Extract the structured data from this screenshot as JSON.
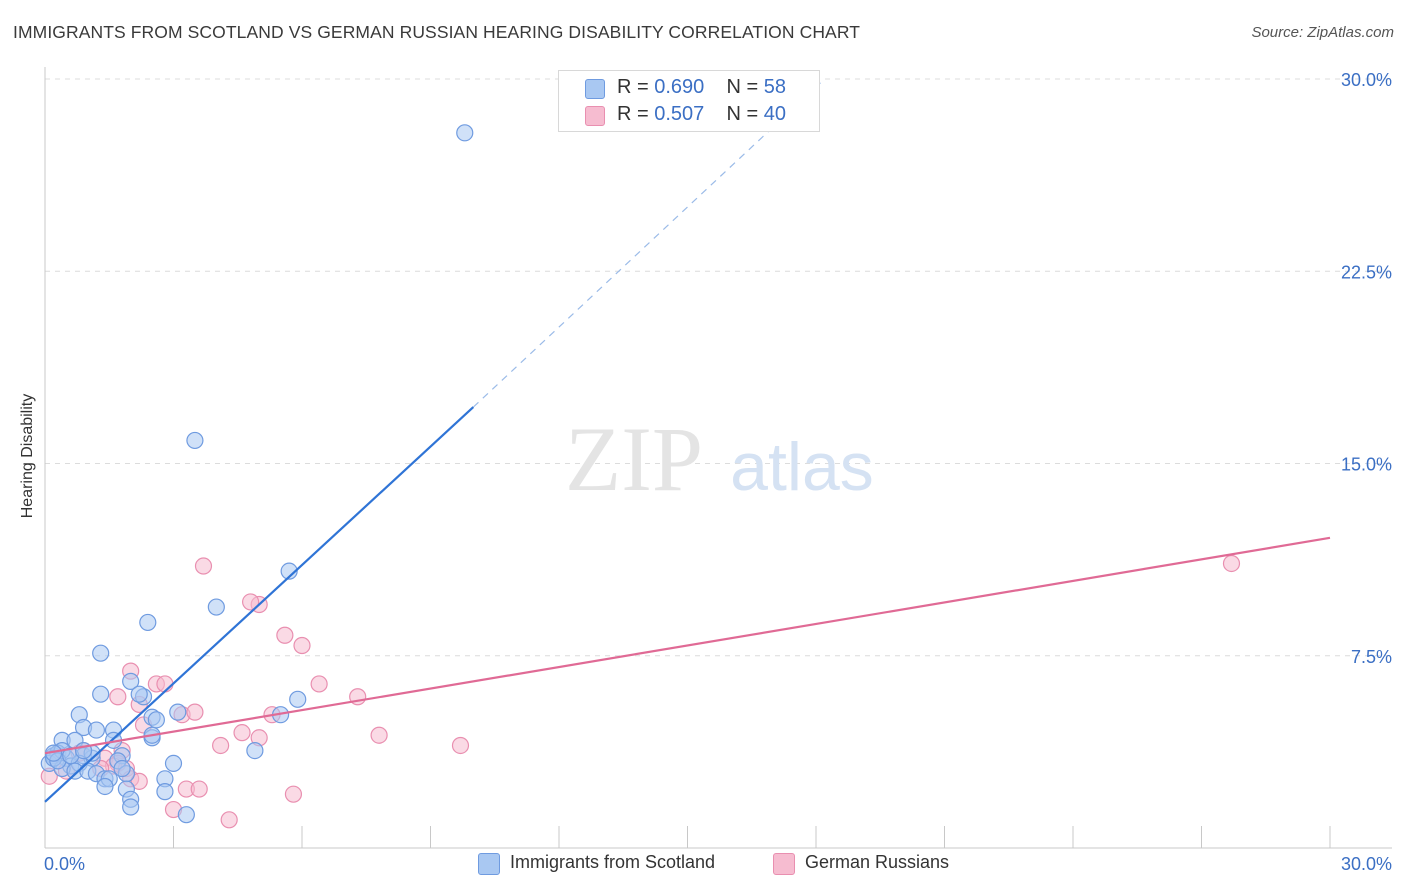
{
  "title": "IMMIGRANTS FROM SCOTLAND VS GERMAN RUSSIAN HEARING DISABILITY CORRELATION CHART",
  "source": "Source: ZipAtlas.com",
  "watermark": {
    "zip": "ZIP",
    "atlas": "atlas"
  },
  "legend": {
    "rows": [
      {
        "r_label": "R = ",
        "r_value": "0.690",
        "n_label": "N = ",
        "n_value": "58"
      },
      {
        "r_label": "R = ",
        "r_value": "0.507",
        "n_label": "N = ",
        "n_value": "40"
      }
    ]
  },
  "bottom_legend": {
    "series1": "Immigrants from Scotland",
    "series2": "German Russians"
  },
  "colors": {
    "blue_fill": "#a9c8f2",
    "blue_stroke": "#6f9be0",
    "blue_line": "#2f74d6",
    "pink_fill": "#f6bcd0",
    "pink_stroke": "#e98fb0",
    "pink_line": "#e06a95",
    "tick_label": "#3b6fc4",
    "grid": "#dcdcdc"
  },
  "chart_data": {
    "type": "scatter",
    "title": "IMMIGRANTS FROM SCOTLAND VS GERMAN RUSSIAN HEARING DISABILITY CORRELATION CHART",
    "xlabel": "",
    "ylabel": "Hearing Disability",
    "xlim": [
      0,
      30
    ],
    "ylim": [
      0,
      30
    ],
    "x_tick_labels": [
      "0.0%",
      "30.0%"
    ],
    "y_tick_values": [
      7.5,
      15.0,
      22.5,
      30.0
    ],
    "y_tick_labels": [
      "7.5%",
      "15.0%",
      "22.5%",
      "30.0%"
    ],
    "grid": true,
    "legend_position": "top-center",
    "series": [
      {
        "name": "Immigrants from Scotland",
        "r": 0.69,
        "n": 58,
        "trend": {
          "x0": 0,
          "y0": 1.8,
          "x1": 10.0,
          "y1": 17.2,
          "dashed_to_x": 18.2,
          "dashed_to_y": 30.0
        },
        "points": [
          [
            9.8,
            27.9
          ],
          [
            3.5,
            15.9
          ],
          [
            5.7,
            10.8
          ],
          [
            4.0,
            9.4
          ],
          [
            2.4,
            8.8
          ],
          [
            1.3,
            7.6
          ],
          [
            1.3,
            6.0
          ],
          [
            2.0,
            6.5
          ],
          [
            2.3,
            5.9
          ],
          [
            2.2,
            6.0
          ],
          [
            5.9,
            5.8
          ],
          [
            2.5,
            5.1
          ],
          [
            3.1,
            5.3
          ],
          [
            2.6,
            5.0
          ],
          [
            5.5,
            5.2
          ],
          [
            0.8,
            5.2
          ],
          [
            0.9,
            4.7
          ],
          [
            1.2,
            4.6
          ],
          [
            1.6,
            4.6
          ],
          [
            2.5,
            4.3
          ],
          [
            0.4,
            4.2
          ],
          [
            0.7,
            4.2
          ],
          [
            1.6,
            4.2
          ],
          [
            4.9,
            3.8
          ],
          [
            0.2,
            3.6
          ],
          [
            0.3,
            3.7
          ],
          [
            0.5,
            3.5
          ],
          [
            0.9,
            3.6
          ],
          [
            1.1,
            3.5
          ],
          [
            1.8,
            3.6
          ],
          [
            0.1,
            3.3
          ],
          [
            0.6,
            3.2
          ],
          [
            0.8,
            3.3
          ],
          [
            1.7,
            3.4
          ],
          [
            3.0,
            3.3
          ],
          [
            0.4,
            3.1
          ],
          [
            0.7,
            3.0
          ],
          [
            1.0,
            3.0
          ],
          [
            1.2,
            2.9
          ],
          [
            1.9,
            2.9
          ],
          [
            1.4,
            2.7
          ],
          [
            1.5,
            2.7
          ],
          [
            2.8,
            2.7
          ],
          [
            1.4,
            2.4
          ],
          [
            1.9,
            2.3
          ],
          [
            2.8,
            2.2
          ],
          [
            2.0,
            1.9
          ],
          [
            2.0,
            1.6
          ],
          [
            3.3,
            1.3
          ],
          [
            0.2,
            3.5
          ],
          [
            0.4,
            3.8
          ],
          [
            1.1,
            3.7
          ],
          [
            0.3,
            3.4
          ],
          [
            0.6,
            3.6
          ],
          [
            1.8,
            3.1
          ],
          [
            2.5,
            4.4
          ],
          [
            0.9,
            3.8
          ],
          [
            0.2,
            3.7
          ]
        ]
      },
      {
        "name": "German Russians",
        "r": 0.507,
        "n": 40,
        "trend": {
          "x0": 0,
          "y0": 3.7,
          "x1": 30.0,
          "y1": 12.1
        },
        "points": [
          [
            27.7,
            11.1
          ],
          [
            3.7,
            11.0
          ],
          [
            5.0,
            9.5
          ],
          [
            4.8,
            9.6
          ],
          [
            5.6,
            8.3
          ],
          [
            6.0,
            7.9
          ],
          [
            2.0,
            6.9
          ],
          [
            6.4,
            6.4
          ],
          [
            2.6,
            6.4
          ],
          [
            2.8,
            6.4
          ],
          [
            1.7,
            5.9
          ],
          [
            7.3,
            5.9
          ],
          [
            2.2,
            5.6
          ],
          [
            3.2,
            5.2
          ],
          [
            3.5,
            5.3
          ],
          [
            5.3,
            5.2
          ],
          [
            2.3,
            4.8
          ],
          [
            4.6,
            4.5
          ],
          [
            7.8,
            4.4
          ],
          [
            5.0,
            4.3
          ],
          [
            4.1,
            4.0
          ],
          [
            9.7,
            4.0
          ],
          [
            1.8,
            3.8
          ],
          [
            0.9,
            3.8
          ],
          [
            1.4,
            3.5
          ],
          [
            1.7,
            3.3
          ],
          [
            1.6,
            3.2
          ],
          [
            1.9,
            3.1
          ],
          [
            2.0,
            2.7
          ],
          [
            2.2,
            2.6
          ],
          [
            3.3,
            2.3
          ],
          [
            3.6,
            2.3
          ],
          [
            5.8,
            2.1
          ],
          [
            3.0,
            1.5
          ],
          [
            4.3,
            1.1
          ],
          [
            0.3,
            3.4
          ],
          [
            0.5,
            3.0
          ],
          [
            0.8,
            3.7
          ],
          [
            1.3,
            3.1
          ],
          [
            0.1,
            2.8
          ]
        ]
      }
    ]
  }
}
